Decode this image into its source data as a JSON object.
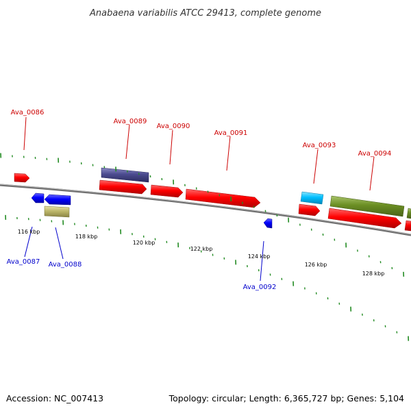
{
  "title": "Anabaena variabilis ATCC 29413, complete genome",
  "footer": {
    "accession": "Accession: NC_007413",
    "summary": "Topology: circular; Length: 6,365,727 bp; Genes: 5,104"
  },
  "colors": {
    "background": "#ffffff",
    "backbone": "#808080",
    "tick": "#228b22",
    "forward_label": "#cc0000",
    "reverse_label": "#0000cc",
    "red": "#ff0000",
    "blue": "#0000ff",
    "navy": "#4b4b8f",
    "khaki": "#bdb76b",
    "cyan": "#00bfff",
    "olive": "#6b8e23"
  },
  "scale_labels": [
    "116 kbp",
    "118 kbp",
    "120 kbp",
    "122 kbp",
    "124 kbp",
    "126 kbp",
    "128 kbp"
  ],
  "gene_labels": {
    "forward": [
      "Ava_0086",
      "Ava_0089",
      "Ava_0090",
      "Ava_0091",
      "Ava_0093",
      "Ava_0094"
    ],
    "reverse": [
      "Ava_0087",
      "Ava_0088",
      "Ava_0092"
    ]
  },
  "features": [
    {
      "name": "gene-ava-0086",
      "strand": "forward",
      "color": "red"
    },
    {
      "name": "gene-ava-0087",
      "strand": "reverse",
      "color": "blue"
    },
    {
      "name": "gene-ava-0088",
      "strand": "reverse",
      "color": "blue"
    },
    {
      "name": "gene-ava-0088-cds",
      "strand": "reverse",
      "color": "khaki"
    },
    {
      "name": "gene-ava-0089-cds",
      "strand": "forward",
      "color": "navy"
    },
    {
      "name": "gene-ava-0089",
      "strand": "forward",
      "color": "red"
    },
    {
      "name": "gene-ava-0090",
      "strand": "forward",
      "color": "red"
    },
    {
      "name": "gene-ava-0091",
      "strand": "forward",
      "color": "red"
    },
    {
      "name": "gene-ava-0092",
      "strand": "reverse",
      "color": "blue"
    },
    {
      "name": "gene-ava-0093-cds",
      "strand": "forward",
      "color": "cyan"
    },
    {
      "name": "gene-ava-0093",
      "strand": "forward",
      "color": "red"
    },
    {
      "name": "gene-ava-0094-cds",
      "strand": "forward",
      "color": "olive"
    },
    {
      "name": "gene-ava-0094",
      "strand": "forward",
      "color": "red"
    },
    {
      "name": "gene-ava-0095-cds",
      "strand": "forward",
      "color": "olive"
    },
    {
      "name": "gene-ava-0095",
      "strand": "forward",
      "color": "red"
    }
  ]
}
